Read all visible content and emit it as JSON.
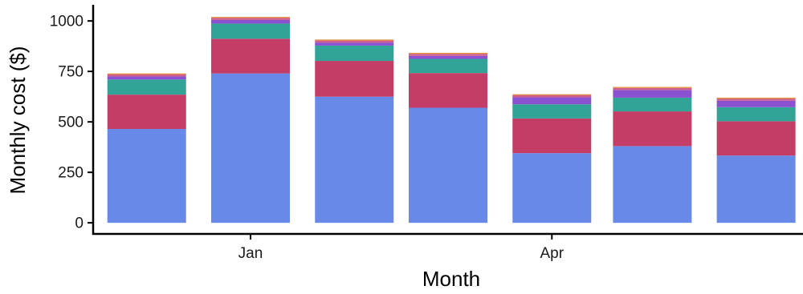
{
  "chart_data": {
    "type": "bar",
    "stacked": true,
    "title": "",
    "xlabel": "Month",
    "ylabel": "Monthly cost ($)",
    "x_tick_labels": [
      "Jan",
      "Apr"
    ],
    "y_ticks": [
      0,
      250,
      500,
      750,
      1000
    ],
    "y_tick_labels": [
      "0",
      "250",
      "500",
      "750",
      "1000"
    ],
    "ylim": [
      -55,
      1080
    ],
    "x_domain": [
      "2020-11-15",
      "2021-06-15"
    ],
    "bars": [
      {
        "x": "2020-12-01",
        "totals": [
          465,
          170,
          75,
          15,
          10,
          5
        ]
      },
      {
        "x": "2021-01-01",
        "totals": [
          740,
          172,
          75,
          18,
          10,
          5
        ]
      },
      {
        "x": "2021-02-01",
        "totals": [
          625,
          177,
          76,
          15,
          10,
          5
        ]
      },
      {
        "x": "2021-03-01",
        "totals": [
          570,
          172,
          70,
          15,
          10,
          5
        ]
      },
      {
        "x": "2021-04-01",
        "totals": [
          345,
          172,
          70,
          35,
          10,
          5
        ]
      },
      {
        "x": "2021-05-01",
        "totals": [
          380,
          172,
          68,
          38,
          10,
          5
        ]
      },
      {
        "x": "2021-06-01",
        "totals": [
          333,
          170,
          70,
          32,
          10,
          5
        ]
      }
    ],
    "segment_colors": [
      "#6889e8",
      "#c33d66",
      "#31a497",
      "#8a51d0",
      "#d05e8c",
      "#e08a3c"
    ],
    "grid": false,
    "legend": "none"
  }
}
